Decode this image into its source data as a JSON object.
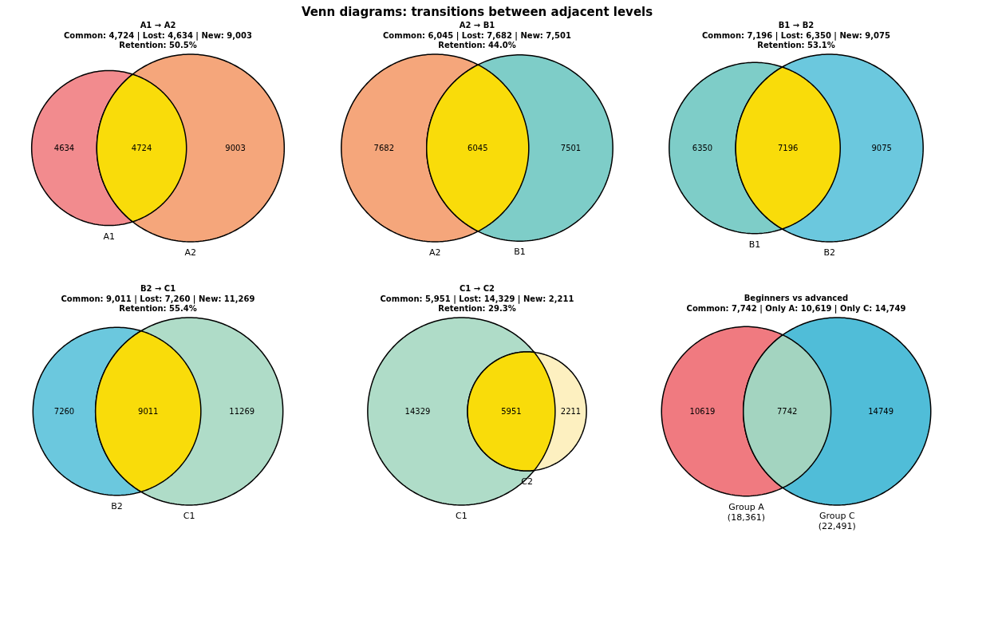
{
  "chart_data": [
    {
      "type": "other",
      "title": "Venn diagrams: transitions between adjacent levels"
    },
    {
      "type": "other",
      "title": "A1 → A2",
      "subtitle": "Common: 4,724 | Lost: 4,634 | New: 9,003\nRetention: 50.5%",
      "categories": [
        null,
        null,
        null
      ],
      "annotations": [
        "A1",
        "A2"
      ],
      "values": [
        4634,
        4724,
        9003
      ],
      "colors": [
        "#f28b8e",
        "#f5a67b",
        "#f9dc0a"
      ],
      "data_labels": true
    },
    {
      "type": "other",
      "title": "A2 → B1",
      "subtitle": "Common: 6,045 | Lost: 7,682 | New: 7,501\nRetention: 44.0%",
      "categories": [
        null,
        null,
        null
      ],
      "annotations": [
        "A2",
        "B1"
      ],
      "values": [
        7682,
        6045,
        7501
      ],
      "colors": [
        "#f5a67b",
        "#7ecdc8",
        "#f9dc0a"
      ],
      "data_labels": true
    },
    {
      "type": "other",
      "title": "B1 → B2",
      "subtitle": "Common: 7,196 | Lost: 6,350 | New: 9,075\nRetention: 53.1%",
      "categories": [
        null,
        null,
        null
      ],
      "annotations": [
        "B1",
        "B2"
      ],
      "values": [
        6350,
        7196,
        9075
      ],
      "colors": [
        "#7ecdc8",
        "#6bc8de",
        "#f9dc0a"
      ],
      "data_labels": true
    },
    {
      "type": "other",
      "title": "B2 → C1",
      "subtitle": "Common: 9,011 | Lost: 7,260 | New: 11,269\nRetention: 55.4%",
      "categories": [
        null,
        null,
        null
      ],
      "annotations": [
        "B2",
        "C1"
      ],
      "values": [
        7260,
        9011,
        11269
      ],
      "colors": [
        "#6bc8de",
        "#afdcc8",
        "#f9dc0a"
      ],
      "data_labels": true
    },
    {
      "type": "other",
      "title": "C1 → C2",
      "subtitle": "Common: 5,951 | Lost: 14,329 | New: 2,211\nRetention: 29.3%",
      "categories": [
        null,
        null,
        null
      ],
      "annotations": [
        "C1",
        "C2"
      ],
      "values": [
        14329,
        5951,
        2211
      ],
      "colors": [
        "#afdcc8",
        "#fdf0c0",
        "#f9dc0a"
      ],
      "data_labels": true
    },
    {
      "type": "other",
      "title": "Beginners vs advanced",
      "subtitle": "Common: 7,742 | Only A: 10,619 | Only C: 14,749",
      "categories": [
        null,
        null,
        null
      ],
      "annotations": [
        "Group A\n(18,361)",
        "Group C\n(22,491)"
      ],
      "values": [
        10619,
        7742,
        14749
      ],
      "colors": [
        "#f07a80",
        "#50bdd8",
        "#a3d4c0"
      ],
      "data_labels": true
    }
  ]
}
